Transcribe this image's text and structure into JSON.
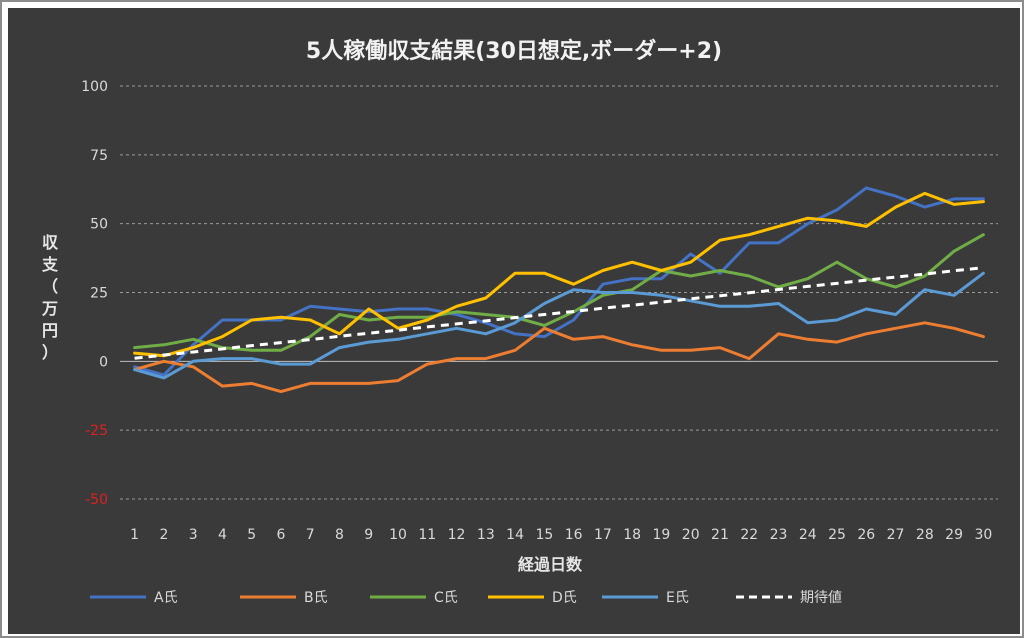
{
  "chart_data": {
    "type": "line",
    "title": "5人稼働収支結果(30日想定,ボーダー+2)",
    "xlabel": "経過日数",
    "ylabel": "収支（万円）",
    "ylim": [
      -50,
      100
    ],
    "yticks": [
      100,
      75,
      50,
      25,
      0,
      -25,
      -50
    ],
    "ytick_labels": [
      "100",
      "75",
      "50",
      "25",
      "0",
      "-25",
      "-50"
    ],
    "grid": true,
    "legend_position": "bottom",
    "x": [
      1,
      2,
      3,
      4,
      5,
      6,
      7,
      8,
      9,
      10,
      11,
      12,
      13,
      14,
      15,
      16,
      17,
      18,
      19,
      20,
      21,
      22,
      23,
      24,
      25,
      26,
      27,
      28,
      29,
      30
    ],
    "series": [
      {
        "name": "A氏",
        "color": "#4472c4",
        "style": "solid",
        "values": [
          -2,
          -5,
          6,
          15,
          15,
          15,
          20,
          19,
          18,
          19,
          19,
          17,
          14,
          10,
          9,
          15,
          28,
          30,
          30,
          39,
          32,
          43,
          43,
          50,
          55,
          63,
          60,
          56,
          59,
          59
        ]
      },
      {
        "name": "B氏",
        "color": "#ed7d31",
        "style": "solid",
        "values": [
          -3,
          0,
          -2,
          -9,
          -8,
          -11,
          -8,
          -8,
          -8,
          -7,
          -1,
          1,
          1,
          4,
          12,
          8,
          9,
          6,
          4,
          4,
          5,
          1,
          10,
          8,
          7,
          10,
          12,
          14,
          12,
          9
        ]
      },
      {
        "name": "C氏",
        "color": "#70ad47",
        "style": "solid",
        "values": [
          5,
          6,
          8,
          5,
          4,
          4,
          9,
          17,
          15,
          16,
          16,
          18,
          17,
          16,
          13,
          18,
          24,
          26,
          33,
          31,
          33,
          31,
          27,
          30,
          36,
          30,
          27,
          31,
          40,
          46
        ]
      },
      {
        "name": "D氏",
        "color": "#ffc000",
        "style": "solid",
        "values": [
          3,
          2,
          5,
          9,
          15,
          16,
          15,
          10,
          19,
          12,
          15,
          20,
          23,
          32,
          32,
          28,
          33,
          36,
          33,
          36,
          44,
          46,
          49,
          52,
          51,
          49,
          56,
          61,
          57,
          58
        ]
      },
      {
        "name": "E氏",
        "color": "#5b9bd5",
        "style": "solid",
        "values": [
          -3,
          -6,
          0,
          1,
          1,
          -1,
          -1,
          5,
          7,
          8,
          10,
          12,
          10,
          14,
          21,
          26,
          25,
          25,
          24,
          22,
          20,
          20,
          21,
          14,
          15,
          19,
          17,
          26,
          24,
          32
        ]
      },
      {
        "name": "期待値",
        "color": "#ffffff",
        "style": "dashed",
        "values": [
          1.1,
          2.3,
          3.4,
          4.5,
          5.7,
          6.8,
          7.9,
          9.1,
          10.2,
          11.3,
          12.5,
          13.6,
          14.7,
          15.9,
          17.0,
          18.1,
          19.3,
          20.4,
          21.5,
          22.7,
          23.8,
          24.9,
          26.1,
          27.2,
          28.3,
          29.5,
          30.6,
          31.7,
          32.9,
          34.0
        ]
      }
    ]
  }
}
